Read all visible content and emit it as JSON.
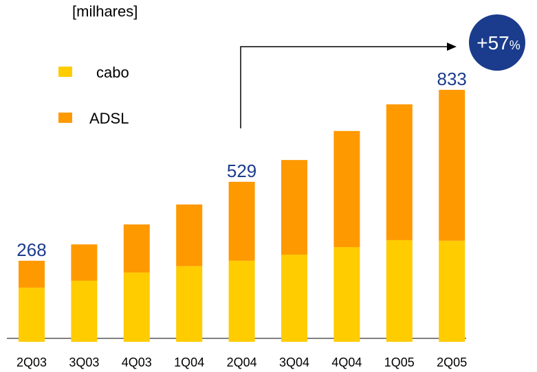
{
  "chart_data": {
    "type": "stacked_bar",
    "subtitle": "[milhares]",
    "categories": [
      "2Q03",
      "3Q03",
      "4Q03",
      "1Q04",
      "2Q04",
      "3Q04",
      "4Q04",
      "1Q05",
      "2Q05"
    ],
    "series": [
      {
        "name": "cabo",
        "color": "#FFCC00",
        "values": [
          179,
          202,
          229,
          250,
          268,
          288,
          313,
          336,
          334
        ]
      },
      {
        "name": "ADSL",
        "color": "#FF9900",
        "values": [
          89,
          120,
          159,
          204,
          261,
          313,
          384,
          449,
          499
        ]
      }
    ],
    "data_labels": [
      {
        "category": "2Q03",
        "value": 268
      },
      {
        "category": "2Q04",
        "value": 529
      },
      {
        "category": "2Q05",
        "value": 833
      }
    ],
    "growth": "+57",
    "growth_unit": "%",
    "ylim": [
      0,
      1130
    ]
  }
}
